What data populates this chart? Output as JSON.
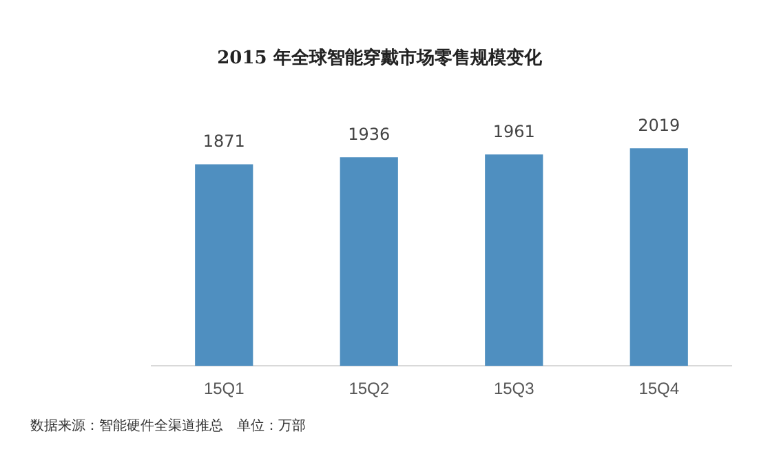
{
  "chart_data": {
    "type": "bar",
    "title": "2015 年全球智能穿戴市场零售规模变化",
    "categories": [
      "15Q1",
      "15Q2",
      "15Q3",
      "15Q4"
    ],
    "values": [
      1871,
      1936,
      1961,
      2019
    ],
    "color": "#4f8fc0",
    "data_labels": true,
    "grid": false,
    "legend": false,
    "annotations": [
      "数据来源：智能硬件全渠道推总　单位：万部"
    ]
  }
}
